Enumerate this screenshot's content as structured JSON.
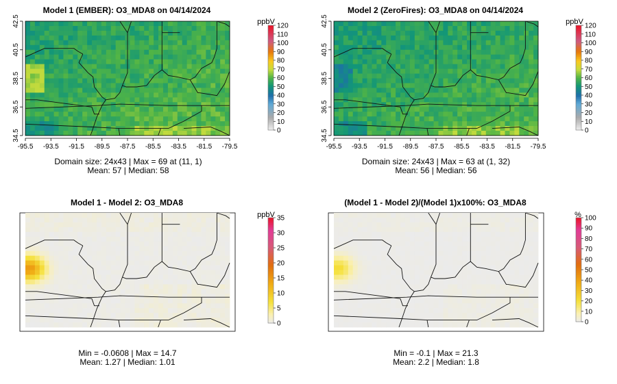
{
  "chart_data": [
    {
      "type": "heatmap",
      "title": "Model 1 (EMBER): O3_MDA8 on 04/14/2024",
      "unit": "ppbV",
      "grid": "24x43",
      "xlim": [
        -95.5,
        -79.5
      ],
      "ylim": [
        34.5,
        42.5
      ],
      "x_ticks": [
        "-95.5",
        "-93.5",
        "-91.5",
        "-89.5",
        "-87.5",
        "-85.5",
        "-83.5",
        "-81.5",
        "-79.5"
      ],
      "y_ticks": [
        "34.5",
        "36.5",
        "38.5",
        "40.5",
        "42.5"
      ],
      "scale_ticks": [
        "0",
        "10",
        "20",
        "30",
        "40",
        "50",
        "60",
        "70",
        "80",
        "90",
        "100",
        "110",
        "120"
      ],
      "scale_max": 120,
      "palette": "ozone",
      "mean": 57,
      "stats_line1": "Domain size: 24x43 | Max = 69 at (11, 1)",
      "stats_line2": "Mean: 57 |  Median: 58"
    },
    {
      "type": "heatmap",
      "title": "Model 2 (ZeroFires): O3_MDA8 on 04/14/2024",
      "unit": "ppbV",
      "grid": "24x43",
      "xlim": [
        -95.5,
        -79.5
      ],
      "ylim": [
        34.5,
        42.5
      ],
      "x_ticks": [
        "-95.5",
        "-93.5",
        "-91.5",
        "-89.5",
        "-87.5",
        "-85.5",
        "-83.5",
        "-81.5",
        "-79.5"
      ],
      "y_ticks": [
        "34.5",
        "36.5",
        "38.5",
        "40.5",
        "42.5"
      ],
      "scale_ticks": [
        "0",
        "10",
        "20",
        "30",
        "40",
        "50",
        "60",
        "70",
        "80",
        "90",
        "100",
        "110",
        "120"
      ],
      "scale_max": 120,
      "palette": "ozone",
      "mean": 56,
      "stats_line1": "Domain size: 24x43 | Max = 63 at (1, 32)",
      "stats_line2": "Mean: 56 |  Median: 56"
    },
    {
      "type": "heatmap",
      "title": "Model 1 - Model 2: O3_MDA8",
      "unit": "ppbV",
      "scale_ticks": [
        "0",
        "5",
        "10",
        "15",
        "20",
        "25",
        "30",
        "35"
      ],
      "scale_max": 35,
      "palette": "diff",
      "min": -0.0608,
      "max": 14.7,
      "mean": 1.27,
      "stats_line1": "Min = -0.0608 | Max = 14.7",
      "stats_line2": "Mean: 1.27 |  Median: 1.01"
    },
    {
      "type": "heatmap",
      "title": "(Model 1 - Model 2)/(Model 1)x100%: O3_MDA8",
      "unit": "%",
      "scale_ticks": [
        "0",
        "10",
        "20",
        "30",
        "40",
        "50",
        "60",
        "70",
        "80",
        "90",
        "100"
      ],
      "scale_max": 100,
      "palette": "diff",
      "min": -0.1,
      "max": 21.3,
      "mean": 2.2,
      "stats_line1": "Min = -0.1 | Max = 21.3",
      "stats_line2": "Mean: 2.2 |  Median: 1.8"
    }
  ]
}
